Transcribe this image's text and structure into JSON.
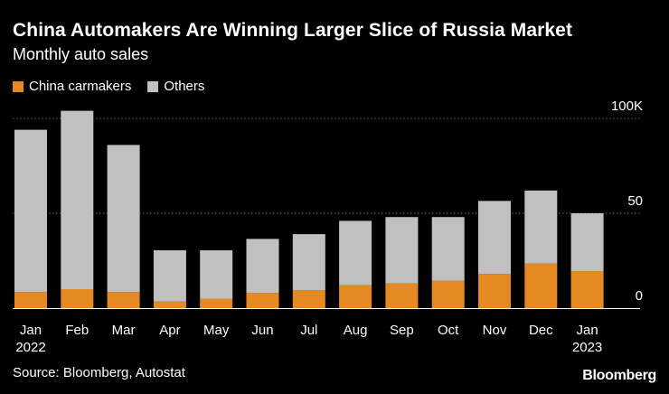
{
  "title": "China Automakers Are Winning Larger Slice of Russia Market",
  "subtitle": "Monthly auto sales",
  "source": "Source: Bloomberg, Autostat",
  "logo": "Bloomberg",
  "colors": {
    "background": "#000000",
    "china": "#e58a22",
    "others": "#c0c0c0",
    "gridline": "#6a6a6a",
    "text": "#ffffff"
  },
  "chart_data": {
    "type": "bar",
    "stacked": true,
    "categories": [
      "Jan",
      "Feb",
      "Mar",
      "Apr",
      "May",
      "Jun",
      "Jul",
      "Aug",
      "Sep",
      "Oct",
      "Nov",
      "Dec",
      "Jan"
    ],
    "category_sublabels": [
      "2022",
      "",
      "",
      "",
      "",
      "",
      "",
      "",
      "",
      "",
      "",
      "",
      "2023"
    ],
    "series": [
      {
        "name": "China carmakers",
        "color": "#e58a22",
        "values": [
          8.5,
          10,
          8.5,
          3.5,
          5,
          8,
          9.5,
          12,
          13,
          14.5,
          18,
          23.5,
          19.5
        ]
      },
      {
        "name": "Others",
        "color": "#c0c0c0",
        "values": [
          85.5,
          94,
          77.5,
          27,
          25.5,
          28.5,
          29.5,
          34,
          35,
          33.5,
          38.5,
          38.5,
          30.5
        ]
      }
    ],
    "ylim": [
      0,
      100
    ],
    "yticks": [
      0,
      50,
      100
    ],
    "ytick_labels": [
      "0",
      "50",
      "100K"
    ],
    "grid": true,
    "legend": "top-left"
  }
}
